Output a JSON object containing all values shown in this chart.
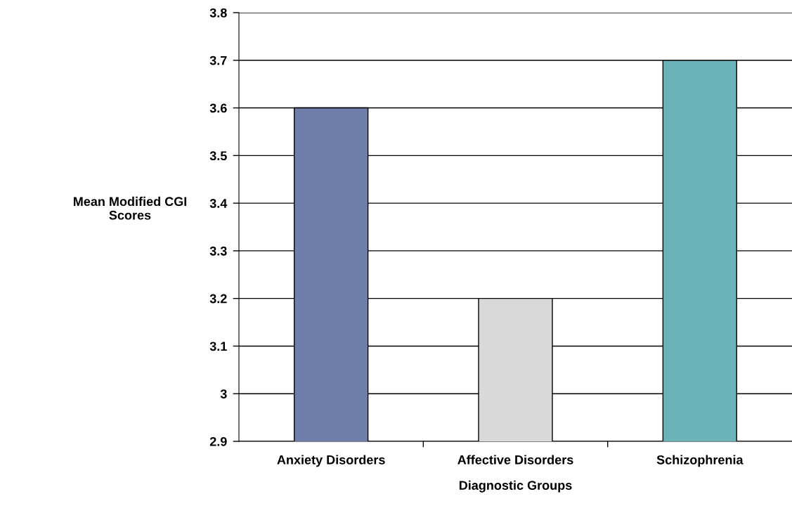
{
  "chart_data": {
    "type": "bar",
    "xlabel": "Diagnostic Groups",
    "ylabel": "Mean Modified CGI\nScores",
    "categories": [
      "Anxiety Disorders",
      "Affective Disorders",
      "Schizophrenia"
    ],
    "values": [
      3.6,
      3.2,
      3.7
    ],
    "colors": [
      "#6e7fab",
      "#d9d9d9",
      "#6ab3b8"
    ],
    "ylim": [
      2.9,
      3.8
    ],
    "yticks": [
      2.9,
      3,
      3.1,
      3.2,
      3.3,
      3.4,
      3.5,
      3.6,
      3.7,
      3.8
    ],
    "grid": "y"
  }
}
